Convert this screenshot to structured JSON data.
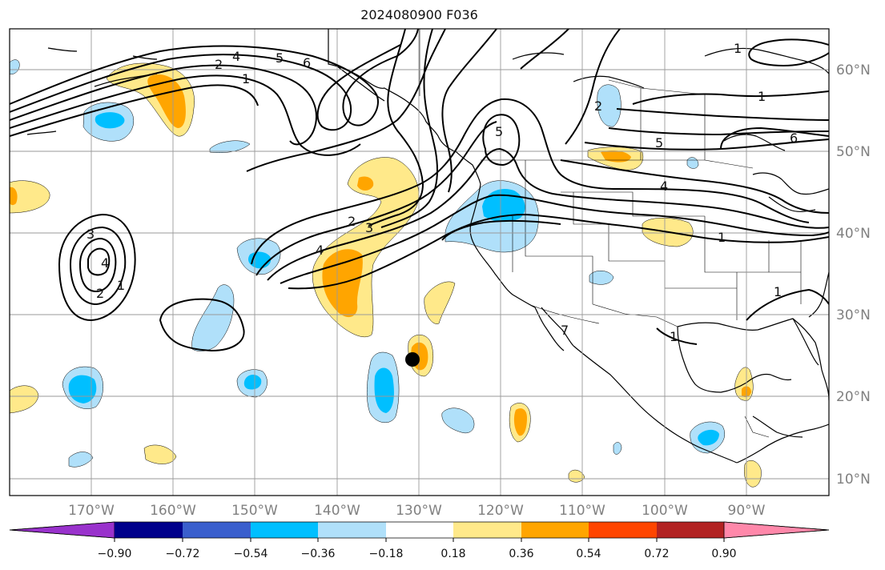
{
  "title": "2024080900 F036",
  "map": {
    "lat_labels": [
      "60°N",
      "50°N",
      "40°N",
      "30°N",
      "20°N",
      "10°N"
    ],
    "lon_labels": [
      "170°W",
      "160°W",
      "150°W",
      "140°W",
      "130°W",
      "120°W",
      "110°W",
      "100°W",
      "90°W"
    ],
    "contour_labels": [
      "1",
      "2",
      "3",
      "4",
      "5",
      "6",
      "7"
    ],
    "colors": {
      "positive_light": "#ffe98a",
      "positive_mid": "#ffa500",
      "negative_light": "#b0e0fa",
      "negative_mid": "#00bfff",
      "contour": "#000000",
      "grid": "#9a9a9a",
      "marker": "#000000"
    }
  },
  "colorbar": {
    "ticks": [
      "−0.90",
      "−0.72",
      "−0.54",
      "−0.36",
      "−0.18",
      "0.18",
      "0.36",
      "0.54",
      "0.72",
      "0.90"
    ],
    "colors": [
      "#9932cc",
      "#00008b",
      "#3a5fcd",
      "#00bfff",
      "#b0e0fa",
      "#ffffff",
      "#ffe98a",
      "#ffa500",
      "#ff4500",
      "#b22222",
      "#ff88aa"
    ]
  }
}
